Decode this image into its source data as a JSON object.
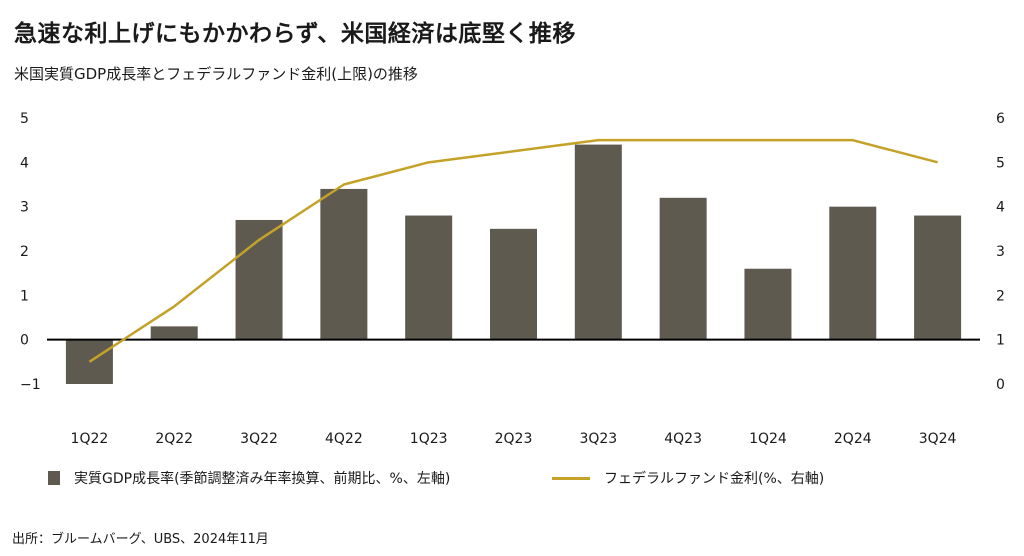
{
  "headline": "急速な利上げにもかかわらず、米国経済は底堅く推移",
  "subtitle": "米国実質GDP成長率とフェデラルファンド金利(上限)の推移",
  "source": "出所：ブルームバーグ、UBS、2024年11月",
  "legend": {
    "bar_label": "実質GDP成長率(季節調整済み年率換算、前期比、%、左軸)",
    "line_label": "フェデラルファンド金利(%、右軸)"
  },
  "colors": {
    "bar": "#5f5a50",
    "line": "#c4a228"
  },
  "chart_data": {
    "type": "bar",
    "categories": [
      "1Q22",
      "2Q22",
      "3Q22",
      "4Q22",
      "1Q23",
      "2Q23",
      "3Q23",
      "4Q23",
      "1Q24",
      "2Q24",
      "3Q24"
    ],
    "series": [
      {
        "name": "実質GDP成長率(季節調整済み年率換算、前期比、%、左軸)",
        "type": "bar",
        "axis": "left",
        "values": [
          -1.0,
          0.3,
          2.7,
          3.4,
          2.8,
          2.5,
          4.4,
          3.2,
          1.6,
          3.0,
          2.8
        ]
      },
      {
        "name": "フェデラルファンド金利(%、右軸)",
        "type": "line",
        "axis": "right",
        "values": [
          0.5,
          1.75,
          3.25,
          4.5,
          5.0,
          5.25,
          5.5,
          5.5,
          5.5,
          5.5,
          5.0
        ]
      }
    ],
    "left_axis": {
      "ylim": [
        -1,
        5
      ],
      "ticks": [
        "5",
        "4",
        "3",
        "2",
        "1",
        "0",
        "−1"
      ]
    },
    "right_axis": {
      "ylim": [
        0,
        6
      ],
      "ticks": [
        "6",
        "5",
        "4",
        "3",
        "2",
        "1",
        "0"
      ]
    },
    "grid": false,
    "legend_position": "bottom"
  }
}
